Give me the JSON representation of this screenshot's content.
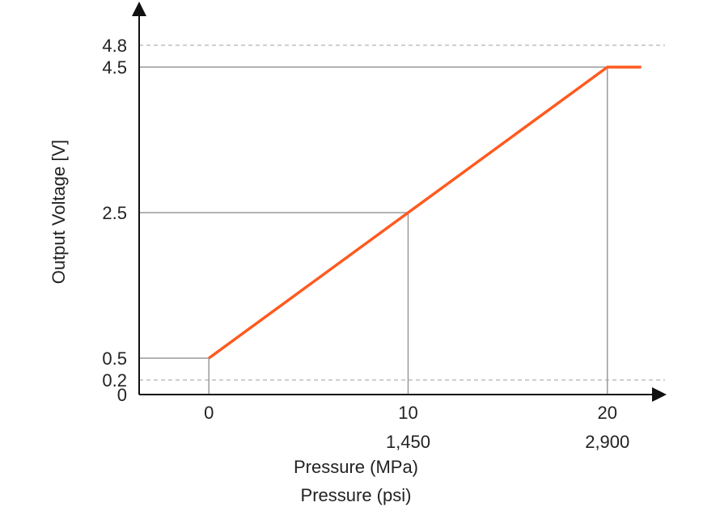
{
  "chart_data": {
    "type": "line",
    "title": "",
    "xlabel": "Pressure (MPa)",
    "xlabel_secondary": "Pressure (psi)",
    "ylabel": "Output Voltage [V]",
    "xlim": [
      -3.5,
      22
    ],
    "ylim": [
      0,
      5.2
    ],
    "x_ticks": [
      {
        "value": 0,
        "label": "0",
        "secondary": ""
      },
      {
        "value": 10,
        "label": "10",
        "secondary": "1,450"
      },
      {
        "value": 20,
        "label": "20",
        "secondary": "2,900"
      }
    ],
    "y_ticks": [
      {
        "value": 0,
        "label": "0"
      },
      {
        "value": 0.2,
        "label": "0.2"
      },
      {
        "value": 0.5,
        "label": "0.5"
      },
      {
        "value": 2.5,
        "label": "2.5"
      },
      {
        "value": 4.5,
        "label": "4.5"
      },
      {
        "value": 4.8,
        "label": "4.8"
      }
    ],
    "reference_lines_dashed": [
      0.2,
      4.8
    ],
    "guide_points": [
      {
        "x": 0,
        "y": 0.5
      },
      {
        "x": 10,
        "y": 2.5
      },
      {
        "x": 20,
        "y": 4.5
      }
    ],
    "series": [
      {
        "color": "#ff5a1f",
        "x": [
          0,
          10,
          20,
          21.7
        ],
        "y": [
          0.5,
          2.5,
          4.5,
          4.5
        ]
      }
    ],
    "colors": {
      "axis": "#111111",
      "guide": "#9a9a9a",
      "dashed": "#bfbfbf",
      "line": "#ff5a1f"
    }
  }
}
